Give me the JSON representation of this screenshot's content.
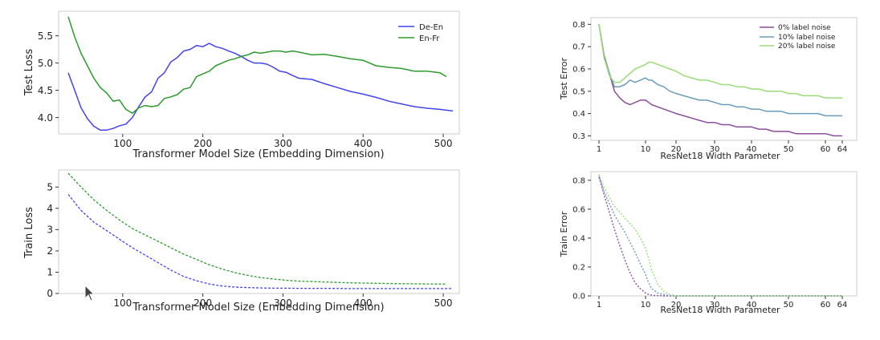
{
  "colors": {
    "de_en": "#4444ee",
    "en_fr": "#2e9a2e",
    "noise0": "#8a4f9a",
    "noise10": "#6b9dbb",
    "noise20": "#9bdc7a"
  },
  "chart_data": [
    {
      "type": "line",
      "xlabel": "Transformer Model Size (Embedding Dimension)",
      "ylabel": "Test Loss",
      "xlim": [
        20,
        520
      ],
      "ylim": [
        3.7,
        5.95
      ],
      "xticks": [
        "100",
        "200",
        "300",
        "400",
        "500"
      ],
      "yticks": [
        "4.0",
        "4.5",
        "5.0",
        "5.5"
      ],
      "legend_position": "top-right",
      "series": [
        {
          "name": "De-En",
          "x": [
            32,
            40,
            48,
            56,
            64,
            72,
            80,
            88,
            96,
            104,
            112,
            120,
            128,
            136,
            144,
            152,
            160,
            168,
            176,
            184,
            192,
            200,
            208,
            216,
            224,
            232,
            240,
            248,
            256,
            264,
            272,
            280,
            288,
            296,
            304,
            312,
            320,
            336,
            352,
            368,
            384,
            400,
            416,
            432,
            448,
            464,
            480,
            496,
            512
          ],
          "values": [
            4.82,
            4.5,
            4.18,
            3.98,
            3.84,
            3.77,
            3.77,
            3.8,
            3.85,
            3.88,
            4.0,
            4.2,
            4.38,
            4.47,
            4.72,
            4.82,
            5.02,
            5.1,
            5.22,
            5.25,
            5.32,
            5.3,
            5.36,
            5.3,
            5.27,
            5.22,
            5.18,
            5.12,
            5.05,
            5.0,
            5.0,
            4.98,
            4.92,
            4.85,
            4.83,
            4.77,
            4.72,
            4.7,
            4.62,
            4.55,
            4.48,
            4.43,
            4.37,
            4.3,
            4.25,
            4.2,
            4.17,
            4.15,
            4.12
          ]
        },
        {
          "name": "En-Fr",
          "x": [
            32,
            40,
            48,
            56,
            64,
            72,
            80,
            88,
            96,
            104,
            112,
            120,
            128,
            136,
            144,
            152,
            160,
            168,
            176,
            184,
            192,
            200,
            208,
            216,
            224,
            232,
            240,
            248,
            256,
            264,
            272,
            280,
            288,
            296,
            304,
            312,
            320,
            336,
            352,
            368,
            384,
            400,
            416,
            432,
            448,
            464,
            480,
            496,
            504
          ],
          "values": [
            5.85,
            5.48,
            5.18,
            4.95,
            4.72,
            4.55,
            4.45,
            4.3,
            4.32,
            4.15,
            4.08,
            4.18,
            4.22,
            4.2,
            4.22,
            4.35,
            4.38,
            4.42,
            4.52,
            4.55,
            4.75,
            4.8,
            4.85,
            4.95,
            5.0,
            5.05,
            5.08,
            5.12,
            5.15,
            5.2,
            5.18,
            5.2,
            5.22,
            5.22,
            5.2,
            5.22,
            5.2,
            5.15,
            5.16,
            5.12,
            5.08,
            5.05,
            4.95,
            4.92,
            4.9,
            4.85,
            4.85,
            4.82,
            4.75
          ]
        }
      ]
    },
    {
      "type": "line",
      "xlabel": "Transformer Model Size (Embedding Dimension)",
      "ylabel": "Train Loss",
      "xlim": [
        20,
        520
      ],
      "ylim": [
        0,
        5.8
      ],
      "xticks": [
        "100",
        "200",
        "300",
        "400",
        "500"
      ],
      "yticks": [
        "0",
        "1",
        "2",
        "3",
        "4",
        "5"
      ],
      "series": [
        {
          "x": [
            32,
            48,
            64,
            80,
            96,
            112,
            128,
            144,
            160,
            176,
            192,
            208,
            224,
            240,
            256,
            272,
            288,
            304,
            320,
            352,
            384,
            416,
            448,
            480,
            512
          ],
          "values": [
            4.65,
            3.9,
            3.35,
            2.95,
            2.55,
            2.15,
            1.8,
            1.45,
            1.1,
            0.8,
            0.6,
            0.45,
            0.35,
            0.3,
            0.28,
            0.26,
            0.25,
            0.25,
            0.24,
            0.24,
            0.23,
            0.23,
            0.23,
            0.23,
            0.23
          ]
        },
        {
          "x": [
            32,
            48,
            64,
            80,
            96,
            112,
            128,
            144,
            160,
            176,
            192,
            208,
            224,
            240,
            256,
            272,
            288,
            304,
            320,
            352,
            384,
            416,
            448,
            480,
            504
          ],
          "values": [
            5.65,
            5.0,
            4.4,
            3.9,
            3.45,
            3.05,
            2.75,
            2.45,
            2.15,
            1.85,
            1.6,
            1.35,
            1.15,
            0.98,
            0.85,
            0.75,
            0.68,
            0.62,
            0.58,
            0.54,
            0.5,
            0.48,
            0.46,
            0.45,
            0.44
          ]
        }
      ]
    },
    {
      "type": "line",
      "xlabel": "ResNet18 Width Parameter",
      "ylabel": "Test Error",
      "xlim": [
        0,
        66
      ],
      "ylim": [
        0.28,
        0.83
      ],
      "xticks": [
        "1",
        "10",
        "20",
        "30",
        "40",
        "50",
        "60",
        "64"
      ],
      "yticks": [
        "0.3",
        "0.4",
        "0.5",
        "0.6",
        "0.7",
        "0.8"
      ],
      "legend_position": "top-right",
      "series": [
        {
          "name": "0% label noise",
          "x": [
            1,
            2,
            3,
            4,
            5,
            6,
            7,
            8,
            9,
            10,
            11,
            12,
            14,
            16,
            18,
            20,
            22,
            24,
            26,
            28,
            30,
            32,
            34,
            36,
            38,
            40,
            42,
            44,
            46,
            48,
            50,
            52,
            54,
            56,
            58,
            60,
            62,
            64
          ],
          "values": [
            0.8,
            0.66,
            0.58,
            0.5,
            0.47,
            0.45,
            0.44,
            0.45,
            0.46,
            0.46,
            0.45,
            0.44,
            0.43,
            0.42,
            0.41,
            0.4,
            0.39,
            0.38,
            0.37,
            0.36,
            0.36,
            0.35,
            0.35,
            0.34,
            0.34,
            0.34,
            0.33,
            0.33,
            0.32,
            0.32,
            0.32,
            0.31,
            0.31,
            0.31,
            0.31,
            0.31,
            0.3,
            0.3
          ]
        },
        {
          "name": "10% label noise",
          "x": [
            1,
            2,
            3,
            4,
            5,
            6,
            7,
            8,
            9,
            10,
            11,
            12,
            14,
            16,
            18,
            20,
            22,
            24,
            26,
            28,
            30,
            32,
            34,
            36,
            38,
            40,
            42,
            44,
            46,
            48,
            50,
            52,
            54,
            56,
            58,
            60,
            62,
            64
          ],
          "values": [
            0.8,
            0.65,
            0.58,
            0.52,
            0.52,
            0.53,
            0.55,
            0.54,
            0.55,
            0.56,
            0.55,
            0.55,
            0.53,
            0.52,
            0.5,
            0.49,
            0.48,
            0.47,
            0.46,
            0.46,
            0.45,
            0.44,
            0.44,
            0.43,
            0.43,
            0.42,
            0.42,
            0.41,
            0.41,
            0.41,
            0.4,
            0.4,
            0.4,
            0.4,
            0.4,
            0.39,
            0.39,
            0.39
          ]
        },
        {
          "name": "20% label noise",
          "x": [
            1,
            2,
            3,
            4,
            5,
            6,
            7,
            8,
            9,
            10,
            11,
            12,
            14,
            16,
            18,
            20,
            22,
            24,
            26,
            28,
            30,
            32,
            34,
            36,
            38,
            40,
            42,
            44,
            46,
            48,
            50,
            52,
            54,
            56,
            58,
            60,
            62,
            64
          ],
          "values": [
            0.8,
            0.65,
            0.57,
            0.54,
            0.54,
            0.56,
            0.58,
            0.6,
            0.61,
            0.62,
            0.63,
            0.63,
            0.62,
            0.61,
            0.6,
            0.59,
            0.57,
            0.56,
            0.55,
            0.55,
            0.54,
            0.53,
            0.53,
            0.52,
            0.52,
            0.51,
            0.51,
            0.5,
            0.5,
            0.5,
            0.49,
            0.49,
            0.48,
            0.48,
            0.48,
            0.47,
            0.47,
            0.47
          ]
        }
      ]
    },
    {
      "type": "line",
      "xlabel": "ResNet18 Width Parameter",
      "ylabel": "Train Error",
      "xlim": [
        0,
        66
      ],
      "ylim": [
        0,
        0.86
      ],
      "xticks": [
        "1",
        "10",
        "20",
        "30",
        "40",
        "50",
        "60",
        "64"
      ],
      "yticks": [
        "0.0",
        "0.2",
        "0.4",
        "0.6",
        "0.8"
      ],
      "series": [
        {
          "x": [
            1,
            2,
            3,
            4,
            5,
            6,
            7,
            8,
            9,
            10,
            11,
            12,
            14,
            16,
            18,
            20,
            25,
            30,
            40,
            50,
            60,
            64
          ],
          "values": [
            0.82,
            0.7,
            0.58,
            0.46,
            0.35,
            0.25,
            0.16,
            0.09,
            0.05,
            0.02,
            0.01,
            0.005,
            0.002,
            0,
            0,
            0,
            0,
            0,
            0,
            0,
            0,
            0
          ]
        },
        {
          "x": [
            1,
            2,
            3,
            4,
            5,
            6,
            7,
            8,
            9,
            10,
            11,
            12,
            14,
            16,
            18,
            20,
            25,
            30,
            40,
            50,
            60,
            64
          ],
          "values": [
            0.83,
            0.72,
            0.64,
            0.56,
            0.5,
            0.44,
            0.37,
            0.3,
            0.22,
            0.15,
            0.09,
            0.05,
            0.02,
            0.01,
            0,
            0,
            0,
            0,
            0,
            0,
            0,
            0
          ]
        },
        {
          "x": [
            1,
            2,
            3,
            4,
            5,
            6,
            7,
            8,
            9,
            10,
            11,
            12,
            14,
            16,
            18,
            20,
            25,
            30,
            40,
            50,
            60,
            64
          ],
          "values": [
            0.84,
            0.75,
            0.68,
            0.62,
            0.58,
            0.54,
            0.5,
            0.46,
            0.4,
            0.33,
            0.26,
            0.18,
            0.08,
            0.03,
            0.01,
            0,
            0,
            0,
            0,
            0,
            0,
            0
          ]
        }
      ]
    }
  ]
}
